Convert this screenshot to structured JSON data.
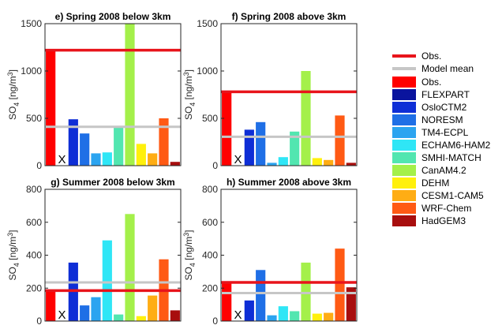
{
  "ylabel": "SO4 [ng/m3]",
  "missing_marker": "X",
  "colors": {
    "obs_line": "#e8141b",
    "model_mean_line": "#c6c6c6"
  },
  "legend": {
    "lines": [
      {
        "label": "Obs.",
        "color": "#e8141b"
      },
      {
        "label": "Model mean",
        "color": "#c6c6c6"
      }
    ],
    "bars": [
      {
        "label": "Obs.",
        "color": "#ff0000"
      },
      {
        "label": "FLEXPART",
        "color": "#0a149e"
      },
      {
        "label": "OsloCTM2",
        "color": "#0e2ed6"
      },
      {
        "label": "NORESM",
        "color": "#1f6fe6"
      },
      {
        "label": "TM4-ECPL",
        "color": "#2ba4f0"
      },
      {
        "label": "ECHAM6-HAM2",
        "color": "#2fe6f6"
      },
      {
        "label": "SMHI-MATCH",
        "color": "#52e6b0"
      },
      {
        "label": "CanAM4.2",
        "color": "#a4f04a"
      },
      {
        "label": "DEHM",
        "color": "#fff00c"
      },
      {
        "label": "CESM1-CAM5",
        "color": "#ffad14"
      },
      {
        "label": "WRF-Chem",
        "color": "#ff5a14"
      },
      {
        "label": "HadGEM3",
        "color": "#a80e0e"
      }
    ]
  },
  "chart_data": [
    {
      "type": "bar",
      "title": "e) Spring 2008 below 3km",
      "ylabel": "SO4 [ng/m3]",
      "ylim": [
        0,
        1500
      ],
      "yticks": [
        "0",
        "500",
        "1000",
        "1500"
      ],
      "categories": [
        "Obs.",
        "FLEXPART",
        "OsloCTM2",
        "NORESM",
        "TM4-ECPL",
        "ECHAM6-HAM2",
        "SMHI-MATCH",
        "CanAM4.2",
        "DEHM",
        "CESM1-CAM5",
        "WRF-Chem",
        "HadGEM3"
      ],
      "values": [
        1220,
        null,
        490,
        340,
        130,
        140,
        410,
        1500,
        230,
        130,
        500,
        40
      ],
      "obs_line": 1220,
      "model_mean_line": 410
    },
    {
      "type": "bar",
      "title": "f) Spring 2008 above 3km",
      "ylabel": "SO4 [ng/m3]",
      "ylim": [
        0,
        1500
      ],
      "yticks": [
        "0",
        "500",
        "1000",
        "1500"
      ],
      "categories": [
        "Obs.",
        "FLEXPART",
        "OsloCTM2",
        "NORESM",
        "TM4-ECPL",
        "ECHAM6-HAM2",
        "SMHI-MATCH",
        "CanAM4.2",
        "DEHM",
        "CESM1-CAM5",
        "WRF-Chem",
        "HadGEM3"
      ],
      "values": [
        780,
        null,
        380,
        460,
        30,
        90,
        360,
        1000,
        80,
        60,
        530,
        30
      ],
      "obs_line": 780,
      "model_mean_line": 305
    },
    {
      "type": "bar",
      "title": "g) Summer 2008 below 3km",
      "ylabel": "SO4 [ng/m3]",
      "ylim": [
        0,
        800
      ],
      "yticks": [
        "0",
        "200",
        "400",
        "600",
        "800"
      ],
      "categories": [
        "Obs.",
        "FLEXPART",
        "OsloCTM2",
        "NORESM",
        "TM4-ECPL",
        "ECHAM6-HAM2",
        "SMHI-MATCH",
        "CanAM4.2",
        "DEHM",
        "CESM1-CAM5",
        "WRF-Chem",
        "HadGEM3"
      ],
      "values": [
        185,
        null,
        355,
        95,
        145,
        490,
        40,
        650,
        30,
        155,
        375,
        65
      ],
      "obs_line": 185,
      "model_mean_line": 235
    },
    {
      "type": "bar",
      "title": "h) Summer 2008 above 3km",
      "ylabel": "SO4 [ng/m3]",
      "ylim": [
        0,
        800
      ],
      "yticks": [
        "0",
        "200",
        "400",
        "600",
        "800"
      ],
      "categories": [
        "Obs.",
        "FLEXPART",
        "OsloCTM2",
        "NORESM",
        "TM4-ECPL",
        "ECHAM6-HAM2",
        "SMHI-MATCH",
        "CanAM4.2",
        "DEHM",
        "CESM1-CAM5",
        "WRF-Chem",
        "HadGEM3"
      ],
      "values": [
        235,
        null,
        125,
        310,
        35,
        90,
        60,
        355,
        45,
        50,
        440,
        205
      ],
      "obs_line": 235,
      "model_mean_line": 170
    }
  ]
}
